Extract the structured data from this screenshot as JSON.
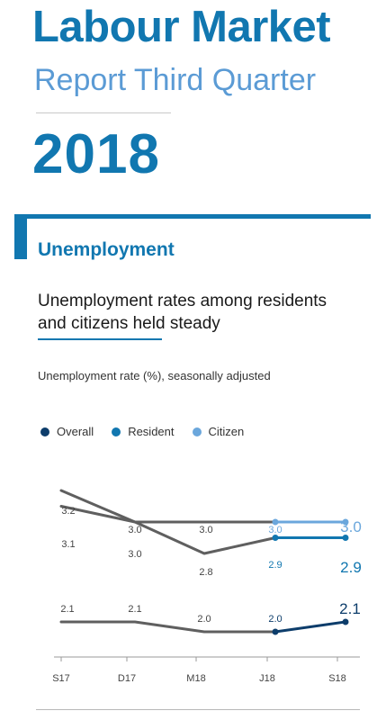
{
  "header": {
    "title_line1": "Labour Market",
    "title_line2": "Report Third Quarter",
    "year": "2018"
  },
  "section": {
    "title": "Unemployment",
    "headline": "Unemployment rates among residents and citizens held steady",
    "subtitle": "Unemployment rate (%), seasonally adjusted"
  },
  "legend": [
    {
      "label": "Overall",
      "color": "#0d3d6b"
    },
    {
      "label": "Resident",
      "color": "#1177b0"
    },
    {
      "label": "Citizen",
      "color": "#6ba7dc"
    }
  ],
  "chart_data": {
    "type": "line",
    "categories": [
      "S17",
      "D17",
      "M18",
      "J18",
      "S18"
    ],
    "series": [
      {
        "name": "Overall",
        "values": [
          2.1,
          2.1,
          2.0,
          2.0,
          2.1
        ],
        "labels": [
          "2.1",
          "2.1",
          "2.0",
          "2.0",
          "2.1"
        ]
      },
      {
        "name": "Resident",
        "values": [
          3.1,
          3.0,
          2.8,
          2.9,
          2.9
        ],
        "labels": [
          "3.1",
          "3.0",
          "2.8",
          "2.9",
          "2.9"
        ]
      },
      {
        "name": "Citizen",
        "values": [
          3.2,
          3.0,
          3.0,
          3.0,
          3.0
        ],
        "labels": [
          "3.2",
          "3.0",
          "3.0",
          "3.0",
          "3.0"
        ]
      }
    ],
    "grid": false,
    "legend_position": "top-left"
  }
}
